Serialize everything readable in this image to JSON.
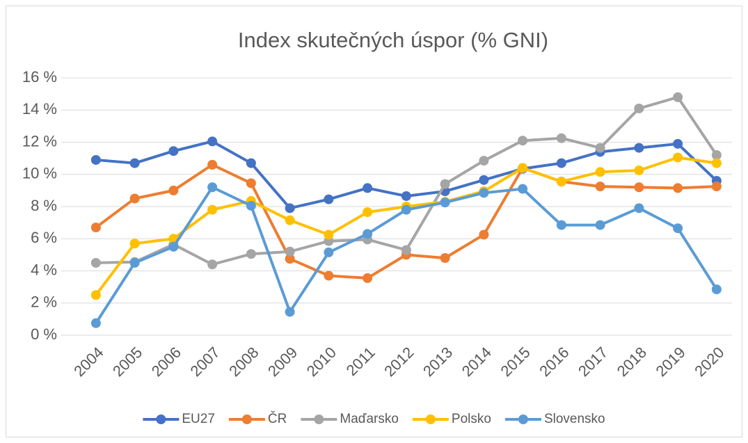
{
  "chart_data": {
    "type": "line",
    "title": "Index skutečných úspor (% GNI)",
    "categories": [
      "2004",
      "2005",
      "2006",
      "2007",
      "2008",
      "2009",
      "2010",
      "2011",
      "2012",
      "2013",
      "2014",
      "2015",
      "2016",
      "2017",
      "2018",
      "2019",
      "2020"
    ],
    "series": [
      {
        "name": "EU27",
        "color": "#4472c4",
        "values": [
          10.9,
          10.7,
          11.45,
          12.05,
          10.7,
          7.9,
          8.45,
          9.15,
          8.65,
          8.95,
          9.65,
          10.35,
          10.7,
          11.4,
          11.65,
          11.9,
          9.6
        ]
      },
      {
        "name": "ČR",
        "color": "#ed7d31",
        "values": [
          6.7,
          8.5,
          9.0,
          10.6,
          9.45,
          4.75,
          3.7,
          3.55,
          5.0,
          4.8,
          6.25,
          10.4,
          9.55,
          9.25,
          9.2,
          9.15,
          9.25
        ]
      },
      {
        "name": "Maďarsko",
        "color": "#a5a5a5",
        "values": [
          4.5,
          4.55,
          5.65,
          4.4,
          5.05,
          5.2,
          5.85,
          5.95,
          5.3,
          9.4,
          10.85,
          12.1,
          12.25,
          11.65,
          14.1,
          14.8,
          11.2
        ]
      },
      {
        "name": "Polsko",
        "color": "#ffc000",
        "values": [
          2.5,
          5.7,
          6.0,
          7.8,
          8.35,
          7.15,
          6.25,
          7.65,
          8.0,
          8.3,
          8.95,
          10.4,
          9.55,
          10.15,
          10.25,
          11.05,
          10.7
        ]
      },
      {
        "name": "Slovensko",
        "color": "#5b9bd5",
        "values": [
          0.75,
          4.5,
          5.5,
          9.2,
          8.05,
          1.45,
          5.15,
          6.3,
          7.8,
          8.25,
          8.85,
          9.1,
          6.85,
          6.85,
          7.9,
          6.65,
          2.85
        ]
      }
    ],
    "ylim": [
      0,
      16
    ],
    "yticks": [
      {
        "value": 0,
        "label": "0 %"
      },
      {
        "value": 2,
        "label": "2 %"
      },
      {
        "value": 4,
        "label": "4 %"
      },
      {
        "value": 6,
        "label": "6 %"
      },
      {
        "value": 8,
        "label": "8 %"
      },
      {
        "value": 10,
        "label": "10 %"
      },
      {
        "value": 12,
        "label": "12 %"
      },
      {
        "value": 14,
        "label": "14 %"
      },
      {
        "value": 16,
        "label": "16 %"
      }
    ],
    "grid": true,
    "legend": "bottom"
  }
}
